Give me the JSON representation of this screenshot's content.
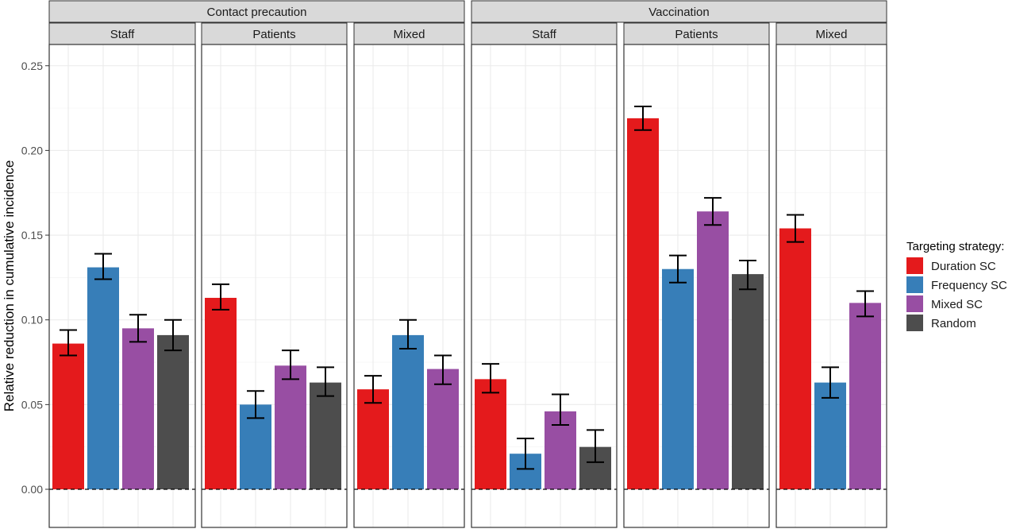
{
  "chart_data": {
    "type": "bar",
    "ylabel": "Relative reduction in cumulative incidence",
    "ylim": [
      -0.016,
      0.25
    ],
    "y_ticks": [
      "0.00",
      "0.05",
      "0.10",
      "0.15",
      "0.20",
      "0.25"
    ],
    "grid": true,
    "legend": {
      "title": "Targeting strategy:",
      "position": "right",
      "entries": [
        {
          "label": "Duration SC",
          "color": "#E41A1C"
        },
        {
          "label": "Frequency SC",
          "color": "#377EB8"
        },
        {
          "label": "Mixed SC",
          "color": "#984EA3"
        },
        {
          "label": "Random",
          "color": "#4D4D4D"
        }
      ]
    },
    "facet_groups": [
      {
        "label": "Contact precaution",
        "panels": [
          {
            "label": "Staff",
            "bars": [
              {
                "series": "Duration SC",
                "value": 0.086,
                "low": 0.079,
                "high": 0.094
              },
              {
                "series": "Frequency SC",
                "value": 0.131,
                "low": 0.124,
                "high": 0.139
              },
              {
                "series": "Mixed SC",
                "value": 0.095,
                "low": 0.087,
                "high": 0.103
              },
              {
                "series": "Random",
                "value": 0.091,
                "low": 0.082,
                "high": 0.1
              }
            ]
          },
          {
            "label": "Patients",
            "bars": [
              {
                "series": "Duration SC",
                "value": 0.113,
                "low": 0.106,
                "high": 0.121
              },
              {
                "series": "Frequency SC",
                "value": 0.05,
                "low": 0.042,
                "high": 0.058
              },
              {
                "series": "Mixed SC",
                "value": 0.073,
                "low": 0.065,
                "high": 0.082
              },
              {
                "series": "Random",
                "value": 0.063,
                "low": 0.055,
                "high": 0.072
              }
            ]
          },
          {
            "label": "Mixed",
            "bars": [
              {
                "series": "Duration SC",
                "value": 0.059,
                "low": 0.051,
                "high": 0.067
              },
              {
                "series": "Frequency SC",
                "value": 0.091,
                "low": 0.083,
                "high": 0.1
              },
              {
                "series": "Mixed SC",
                "value": 0.071,
                "low": 0.062,
                "high": 0.079
              }
            ]
          }
        ]
      },
      {
        "label": "Vaccination",
        "panels": [
          {
            "label": "Staff",
            "bars": [
              {
                "series": "Duration SC",
                "value": 0.065,
                "low": 0.057,
                "high": 0.074
              },
              {
                "series": "Frequency SC",
                "value": 0.021,
                "low": 0.012,
                "high": 0.03
              },
              {
                "series": "Mixed SC",
                "value": 0.046,
                "low": 0.038,
                "high": 0.056
              },
              {
                "series": "Random",
                "value": 0.025,
                "low": 0.016,
                "high": 0.035
              }
            ]
          },
          {
            "label": "Patients",
            "bars": [
              {
                "series": "Duration SC",
                "value": 0.219,
                "low": 0.212,
                "high": 0.226
              },
              {
                "series": "Frequency SC",
                "value": 0.13,
                "low": 0.122,
                "high": 0.138
              },
              {
                "series": "Mixed SC",
                "value": 0.164,
                "low": 0.156,
                "high": 0.172
              },
              {
                "series": "Random",
                "value": 0.127,
                "low": 0.118,
                "high": 0.135
              }
            ]
          },
          {
            "label": "Mixed",
            "bars": [
              {
                "series": "Duration SC",
                "value": 0.154,
                "low": 0.146,
                "high": 0.162
              },
              {
                "series": "Frequency SC",
                "value": 0.063,
                "low": 0.054,
                "high": 0.072
              },
              {
                "series": "Mixed SC",
                "value": 0.11,
                "low": 0.102,
                "high": 0.117
              }
            ]
          }
        ]
      }
    ]
  }
}
